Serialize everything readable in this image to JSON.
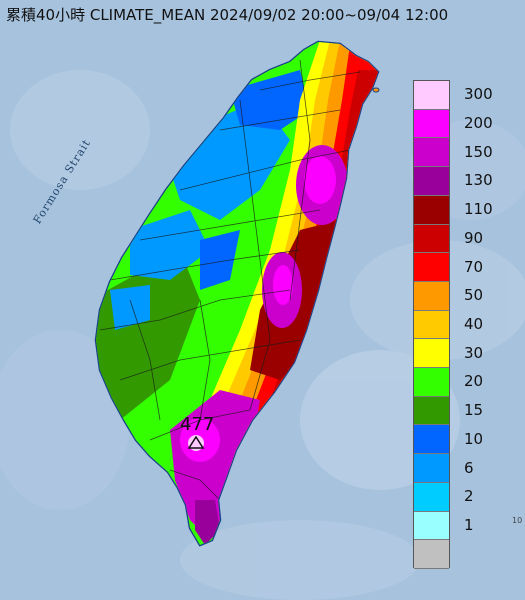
{
  "title": "累積40小時 CLIMATE_MEAN 2024/09/02 20:00~09/04 12:00",
  "strait_label": "Formosa Strait",
  "max_value_label": "477",
  "edge_label": "10",
  "legend": {
    "items": [
      {
        "label": "300",
        "color": "#ffcaff"
      },
      {
        "label": "200",
        "color": "#fb00ff"
      },
      {
        "label": "150",
        "color": "#cc00cc"
      },
      {
        "label": "130",
        "color": "#99009b"
      },
      {
        "label": "110",
        "color": "#9a0000"
      },
      {
        "label": "90",
        "color": "#cc0000"
      },
      {
        "label": "70",
        "color": "#ff0000"
      },
      {
        "label": "50",
        "color": "#ff9900"
      },
      {
        "label": "40",
        "color": "#ffcb00"
      },
      {
        "label": "30",
        "color": "#ffff00"
      },
      {
        "label": "20",
        "color": "#33ff00"
      },
      {
        "label": "15",
        "color": "#329a00"
      },
      {
        "label": "10",
        "color": "#0066ff"
      },
      {
        "label": "6",
        "color": "#0099ff"
      },
      {
        "label": "2",
        "color": "#00ccff"
      },
      {
        "label": "1",
        "color": "#99ffff"
      },
      {
        "label": "",
        "color": "#c0c0c0"
      }
    ]
  }
}
